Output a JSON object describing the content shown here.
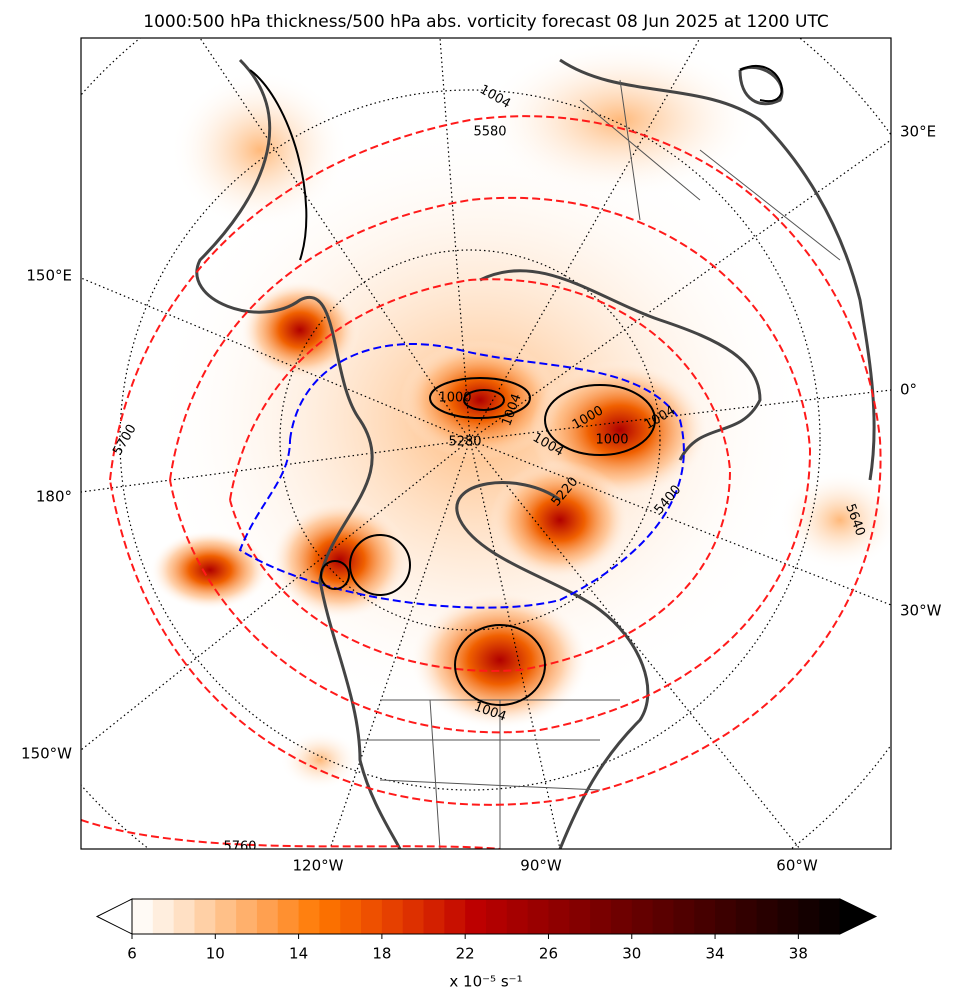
{
  "title": "1000:500 hPa thickness/500 hPa abs. vorticity forecast 08 Jun 2025 at 1200 UTC",
  "map": {
    "lon_labels_right": [
      "30°E",
      "0°",
      "30°W"
    ],
    "lon_labels_left": [
      "150°E",
      "180°",
      "150°W"
    ],
    "lon_labels_bottom": [
      "120°W",
      "90°W",
      "60°W"
    ],
    "thickness_labels_red": [
      "5700",
      "5760",
      "5580",
      "5400",
      "5640"
    ],
    "thickness_labels_blue": [
      "5280",
      "5220"
    ],
    "pressure_labels": [
      "1004",
      "1000",
      "1004",
      "1000",
      "1004",
      "1000",
      "1004",
      "1004"
    ]
  },
  "colorbar": {
    "lim": [
      6,
      40
    ],
    "ticks": [
      6,
      10,
      14,
      18,
      22,
      26,
      30,
      34,
      38
    ],
    "colors": [
      "#fffaf5",
      "#ffeede",
      "#ffe0c4",
      "#ffd0a6",
      "#ffc088",
      "#ffb06c",
      "#ffa050",
      "#ff9030",
      "#ff8010",
      "#fb7000",
      "#f56000",
      "#ee5000",
      "#e64000",
      "#dd3000",
      "#d32000",
      "#c81000",
      "#bd0000",
      "#b10000",
      "#a50000",
      "#9a0000",
      "#8f0000",
      "#840000",
      "#790000",
      "#6e0000",
      "#640000",
      "#5a0000",
      "#500000",
      "#460000",
      "#3c0000",
      "#320000",
      "#280000",
      "#1e0000",
      "#140000",
      "#0a0000"
    ],
    "extend_colors": [
      "#ffffff",
      "#000000"
    ],
    "label": "x 10⁻⁵ s⁻¹"
  }
}
